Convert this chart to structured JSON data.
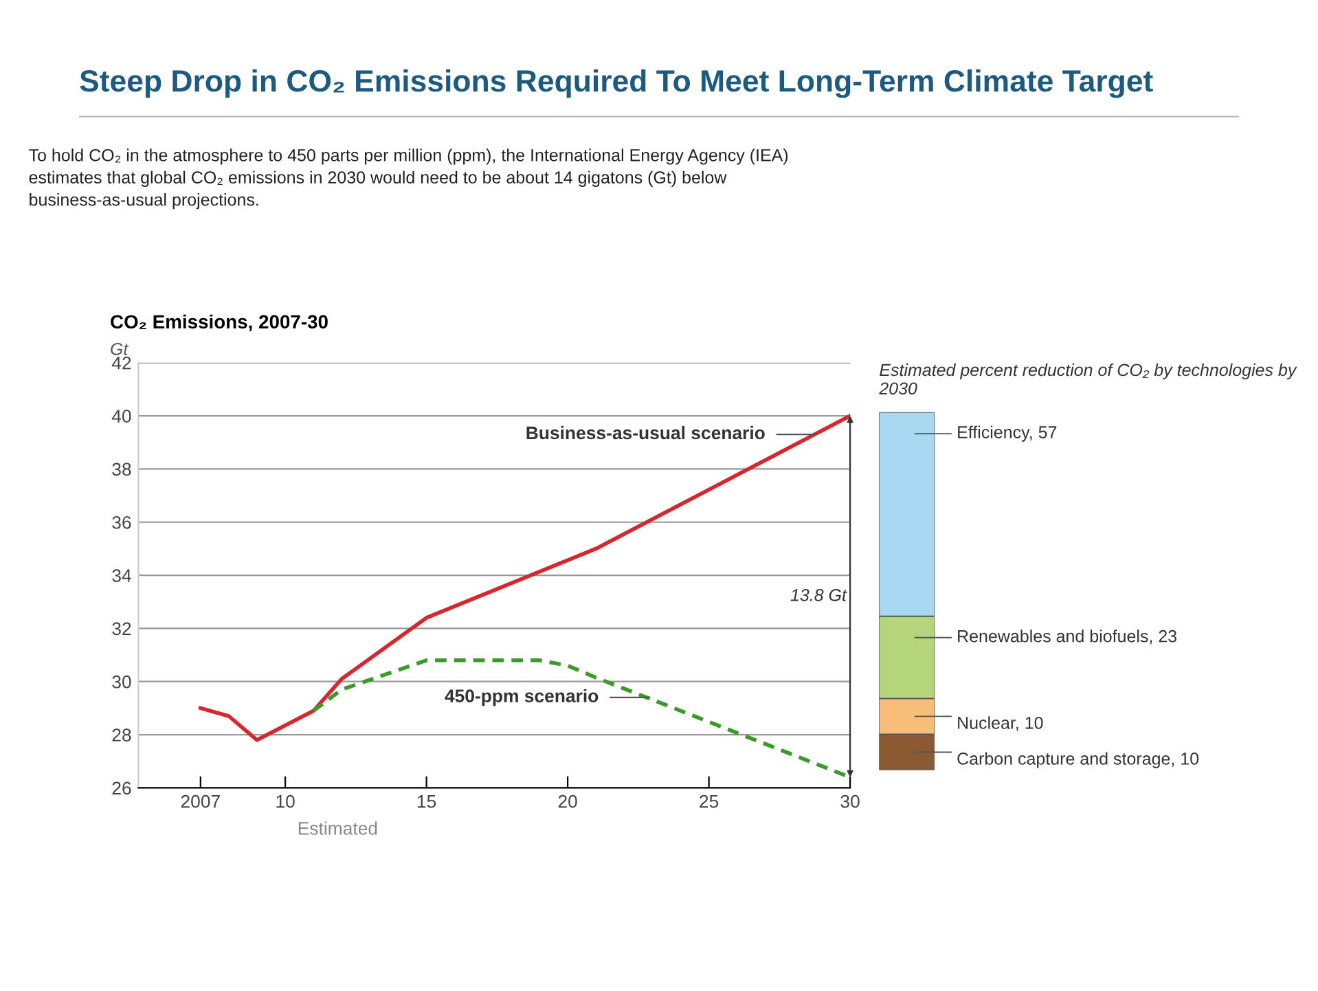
{
  "chart_data": [
    {
      "type": "other",
      "title": "Steep Drop in CO₂ Emissions Required To Meet Long-Term Climate Target",
      "subtitle": "To hold CO₂ in the atmosphere to 450 parts per million (ppm), the International Energy Agency (IEA) estimates that global CO₂ emissions in 2030 would need to be about 14 gigatons (Gt) below business-as-usual projections."
    },
    {
      "type": "line",
      "title": "CO₂ Emissions, 2007-30",
      "ylabel": "Gt",
      "xlim": [
        2004.8,
        2030
      ],
      "ylim": [
        26,
        42
      ],
      "xticks": [
        2007,
        {
          "value": 2010,
          "label": "10"
        },
        {
          "value": 2015,
          "label": "15"
        },
        {
          "value": 2020,
          "label": "20"
        },
        {
          "value": 2025,
          "label": "25"
        },
        {
          "value": 2030,
          "label": "30"
        }
      ],
      "yticks": [
        26,
        28,
        30,
        32,
        34,
        36,
        38,
        40,
        42
      ],
      "grid": "y",
      "series": [
        {
          "color": "#d7262e",
          "line_style": "solid",
          "x": [
            2007,
            2008,
            2009,
            2011,
            2012,
            2015,
            2021,
            2030
          ],
          "values": [
            29.0,
            28.7,
            27.8,
            28.9,
            30.1,
            32.4,
            35.0,
            40.0
          ]
        },
        {
          "color": "#3a9a2a",
          "line_style": "dashed",
          "x": [
            2011,
            2012,
            2015,
            2019,
            2020,
            2021,
            2030
          ],
          "values": [
            28.9,
            29.7,
            30.8,
            30.8,
            30.6,
            30.15,
            26.4
          ]
        }
      ],
      "annotations": [
        {
          "text": "Business-as-usual scenario",
          "x": 2028.8,
          "y": 39.3
        },
        {
          "text": "450-ppm scenario",
          "x": 2022.9,
          "y": 29.4
        },
        "13.8 Gt",
        "Estimated"
      ]
    },
    {
      "type": "bar",
      "title": "Estimated percent reduction of CO₂ by technologies by 2030",
      "stacked": true,
      "categories": [
        null
      ],
      "series": [
        {
          "color": "#8b5a32",
          "values": [
            10
          ],
          "value_labels": [
            "Carbon capture and storage, 10"
          ]
        },
        {
          "color": "#f9bd7a",
          "values": [
            10
          ],
          "value_labels": [
            "Nuclear, 10"
          ]
        },
        {
          "color": "#b5d57a",
          "values": [
            23
          ],
          "value_labels": [
            "Renewables and biofuels, 23"
          ]
        },
        {
          "color": "#a9d8f2",
          "values": [
            57
          ],
          "value_labels": [
            "Efficiency, 57"
          ]
        }
      ]
    }
  ]
}
